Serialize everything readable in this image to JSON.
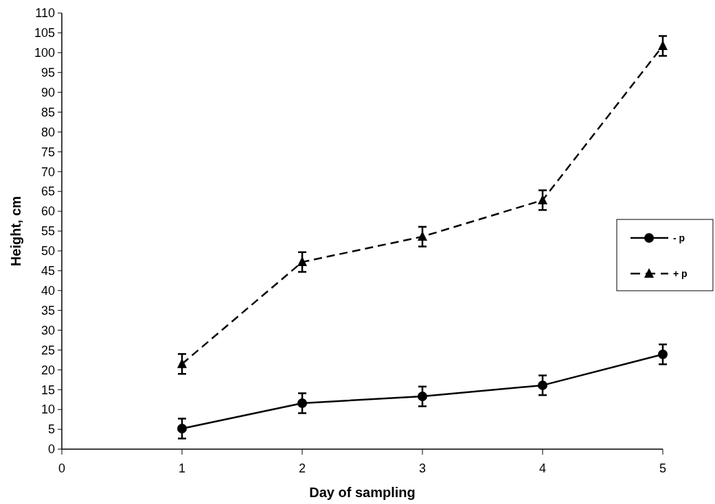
{
  "chart_data": {
    "type": "line",
    "xlabel": "Day of sampling",
    "ylabel": "Height, cm",
    "x": [
      1,
      2,
      3,
      4,
      5
    ],
    "series": [
      {
        "name": "- p",
        "color": "#000000",
        "marker": "circle",
        "line_style": "solid",
        "values": [
          5.2,
          11.6,
          13.3,
          16.1,
          23.9
        ],
        "errors": [
          2.5,
          2.5,
          2.5,
          2.5,
          2.5
        ]
      },
      {
        "name": "+ p",
        "color": "#000000",
        "marker": "triangle",
        "line_style": "dashed",
        "values": [
          21.5,
          47.2,
          53.6,
          62.8,
          101.7
        ],
        "errors": [
          2.5,
          2.5,
          2.5,
          2.5,
          2.5
        ]
      }
    ],
    "xlim": [
      0,
      5
    ],
    "xticks": [
      0,
      1,
      2,
      3,
      4,
      5
    ],
    "ylim": [
      0,
      110
    ],
    "yticks": [
      0,
      5,
      10,
      15,
      20,
      25,
      30,
      35,
      40,
      45,
      50,
      55,
      60,
      65,
      70,
      75,
      80,
      85,
      90,
      95,
      100,
      105,
      110
    ],
    "grid": false,
    "legend": "right"
  }
}
